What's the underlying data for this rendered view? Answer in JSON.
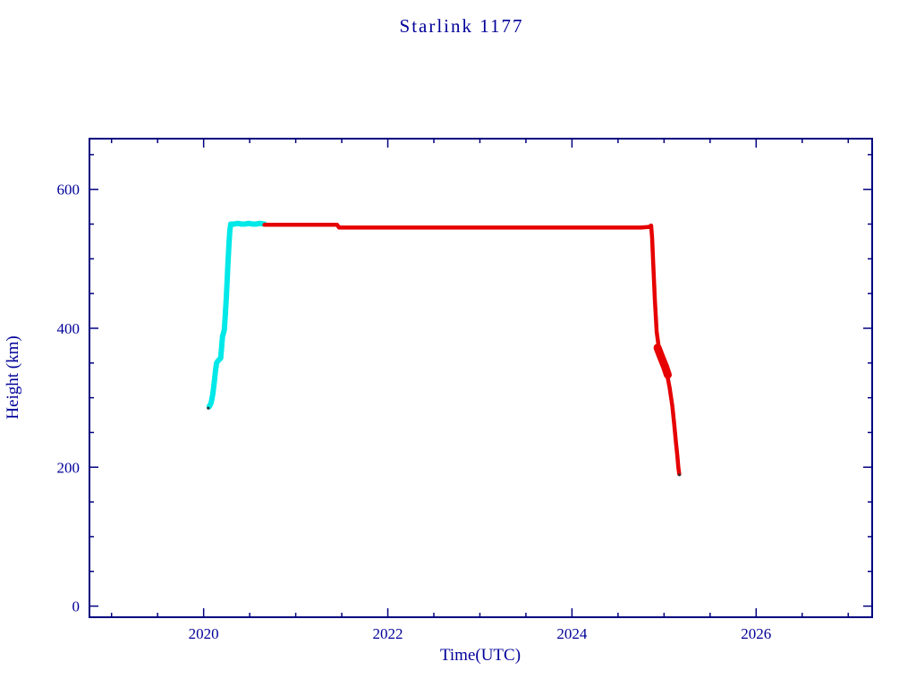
{
  "chart_data": {
    "type": "scatter",
    "title": "Starlink 1177",
    "xlabel": "Time(UTC)",
    "ylabel": "Height (km)",
    "xlim": [
      2018.76,
      2027.26
    ],
    "ylim": [
      -16,
      673
    ],
    "grid": false,
    "legend": null,
    "colors": {
      "axis": "#000080",
      "text": "#000099",
      "background": "#ffffff",
      "ascent": "#00e8e8",
      "operational": "#e60000"
    },
    "xticks": {
      "major": [
        2020,
        2022,
        2024,
        2026
      ],
      "labels": [
        "2020",
        "2022",
        "2024",
        "2026"
      ],
      "minor": [
        2019,
        2019.5,
        2020.5,
        2021,
        2021.5,
        2022.5,
        2023,
        2023.5,
        2024.5,
        2025,
        2025.5,
        2026.5,
        2027
      ]
    },
    "yticks": {
      "major": [
        0,
        200,
        400,
        600
      ],
      "labels": [
        "0",
        "200",
        "400",
        "600"
      ],
      "minor": [
        50,
        100,
        150,
        250,
        300,
        350,
        450,
        500,
        550,
        650
      ]
    },
    "series": [
      {
        "name": "ascent-cyan",
        "color": "#00e8e8",
        "line_width": 6,
        "marker_size": 0,
        "points": [
          [
            2020.06,
            287
          ],
          [
            2020.08,
            292
          ],
          [
            2020.1,
            305
          ],
          [
            2020.115,
            322
          ],
          [
            2020.13,
            340
          ],
          [
            2020.14,
            350
          ],
          [
            2020.155,
            353
          ],
          [
            2020.17,
            355
          ],
          [
            2020.185,
            357
          ],
          [
            2020.195,
            372
          ],
          [
            2020.205,
            388
          ],
          [
            2020.215,
            393
          ],
          [
            2020.225,
            398
          ],
          [
            2020.235,
            418
          ],
          [
            2020.245,
            442
          ],
          [
            2020.255,
            468
          ],
          [
            2020.265,
            495
          ],
          [
            2020.275,
            522
          ],
          [
            2020.285,
            542
          ],
          [
            2020.295,
            550
          ],
          [
            2020.33,
            550
          ],
          [
            2020.37,
            551
          ],
          [
            2020.41,
            550
          ],
          [
            2020.45,
            550
          ],
          [
            2020.49,
            551
          ],
          [
            2020.53,
            550
          ],
          [
            2020.57,
            550
          ],
          [
            2020.61,
            551
          ],
          [
            2020.66,
            550
          ]
        ]
      },
      {
        "name": "operational-red",
        "color": "#e60000",
        "line_width": 4.5,
        "marker_size": 0,
        "points": [
          [
            2020.66,
            549
          ],
          [
            2020.8,
            549
          ],
          [
            2021.0,
            549
          ],
          [
            2021.2,
            549
          ],
          [
            2021.4,
            549
          ],
          [
            2021.45,
            549
          ],
          [
            2021.47,
            545
          ],
          [
            2021.6,
            545
          ],
          [
            2021.8,
            545
          ],
          [
            2022.0,
            545
          ],
          [
            2022.2,
            545
          ],
          [
            2022.4,
            545
          ],
          [
            2022.6,
            545
          ],
          [
            2022.8,
            545
          ],
          [
            2023.0,
            545
          ],
          [
            2023.2,
            545
          ],
          [
            2023.4,
            545
          ],
          [
            2023.6,
            545
          ],
          [
            2023.8,
            545
          ],
          [
            2024.0,
            545
          ],
          [
            2024.2,
            545
          ],
          [
            2024.4,
            545
          ],
          [
            2024.6,
            545
          ],
          [
            2024.75,
            545
          ],
          [
            2024.84,
            546
          ],
          [
            2024.86,
            548
          ],
          [
            2024.87,
            530
          ],
          [
            2024.88,
            500
          ],
          [
            2024.9,
            440
          ],
          [
            2024.92,
            395
          ],
          [
            2024.94,
            375
          ],
          [
            2024.97,
            362
          ],
          [
            2025.0,
            350
          ],
          [
            2025.03,
            336
          ],
          [
            2025.06,
            315
          ],
          [
            2025.09,
            288
          ],
          [
            2025.11,
            262
          ],
          [
            2025.13,
            235
          ],
          [
            2025.145,
            215
          ],
          [
            2025.155,
            200
          ],
          [
            2025.165,
            190
          ]
        ]
      },
      {
        "name": "decay-dense-red",
        "color": "#e60000",
        "line_width": 9,
        "marker_size": 0,
        "points": [
          [
            2024.93,
            372
          ],
          [
            2024.97,
            358
          ],
          [
            2025.01,
            345
          ],
          [
            2025.04,
            333
          ]
        ]
      },
      {
        "name": "stray-dark-points",
        "color": "#333333",
        "line_width": 0,
        "marker_size": 1.6,
        "points": [
          [
            2020.05,
            285
          ],
          [
            2025.168,
            189
          ]
        ]
      }
    ]
  }
}
